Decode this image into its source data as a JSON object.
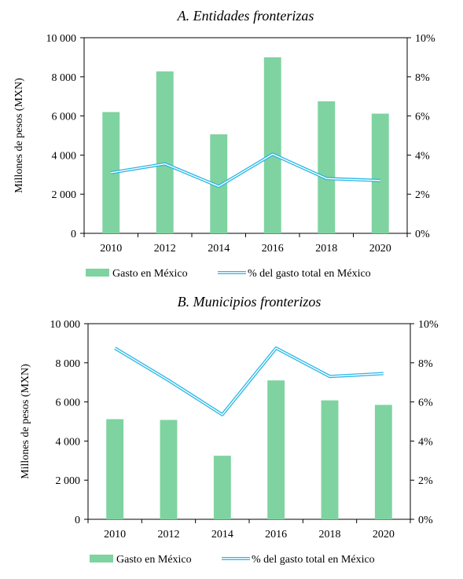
{
  "chart_data": [
    {
      "type": "bar+line",
      "title": "A.   Entidades fronterizas",
      "ylabel": "Millones de pesos (MXN)",
      "categories": [
        "2010",
        "2012",
        "2014",
        "2016",
        "2018",
        "2020"
      ],
      "ylim": [
        0,
        10000
      ],
      "y2lim": [
        0,
        10
      ],
      "yticks": [
        "0",
        "2 000",
        "4 000",
        "6 000",
        "8 000",
        "10 000"
      ],
      "y2ticks": [
        "0%",
        "2%",
        "4%",
        "6%",
        "8%",
        "10%"
      ],
      "series": [
        {
          "name": "Gasto en México",
          "type": "bar",
          "axis": "left",
          "color": "#7fd3a1",
          "values": [
            6200,
            8280,
            5060,
            9000,
            6750,
            6120
          ]
        },
        {
          "name": "% del gasto total en México",
          "type": "line",
          "axis": "right",
          "color": "#29b6e6",
          "values": [
            3.1,
            3.55,
            2.4,
            4.05,
            2.8,
            2.7
          ]
        }
      ]
    },
    {
      "type": "bar+line",
      "title": "B.   Municipios fronterizos",
      "ylabel": "Millones de pesos (MXN)",
      "categories": [
        "2010",
        "2012",
        "2014",
        "2016",
        "2018",
        "2020"
      ],
      "ylim": [
        0,
        10000
      ],
      "y2lim": [
        0,
        10
      ],
      "yticks": [
        "0",
        "2 000",
        "4 000",
        "6 000",
        "8 000",
        "10 000"
      ],
      "y2ticks": [
        "0%",
        "2%",
        "4%",
        "6%",
        "8%",
        "10%"
      ],
      "series": [
        {
          "name": "Gasto en México",
          "type": "bar",
          "axis": "left",
          "color": "#7fd3a1",
          "values": [
            5120,
            5080,
            3250,
            7100,
            6080,
            5850
          ]
        },
        {
          "name": "% del gasto total en México",
          "type": "line",
          "axis": "right",
          "color": "#29b6e6",
          "values": [
            8.75,
            7.1,
            5.35,
            8.75,
            7.3,
            7.45
          ]
        }
      ]
    }
  ]
}
